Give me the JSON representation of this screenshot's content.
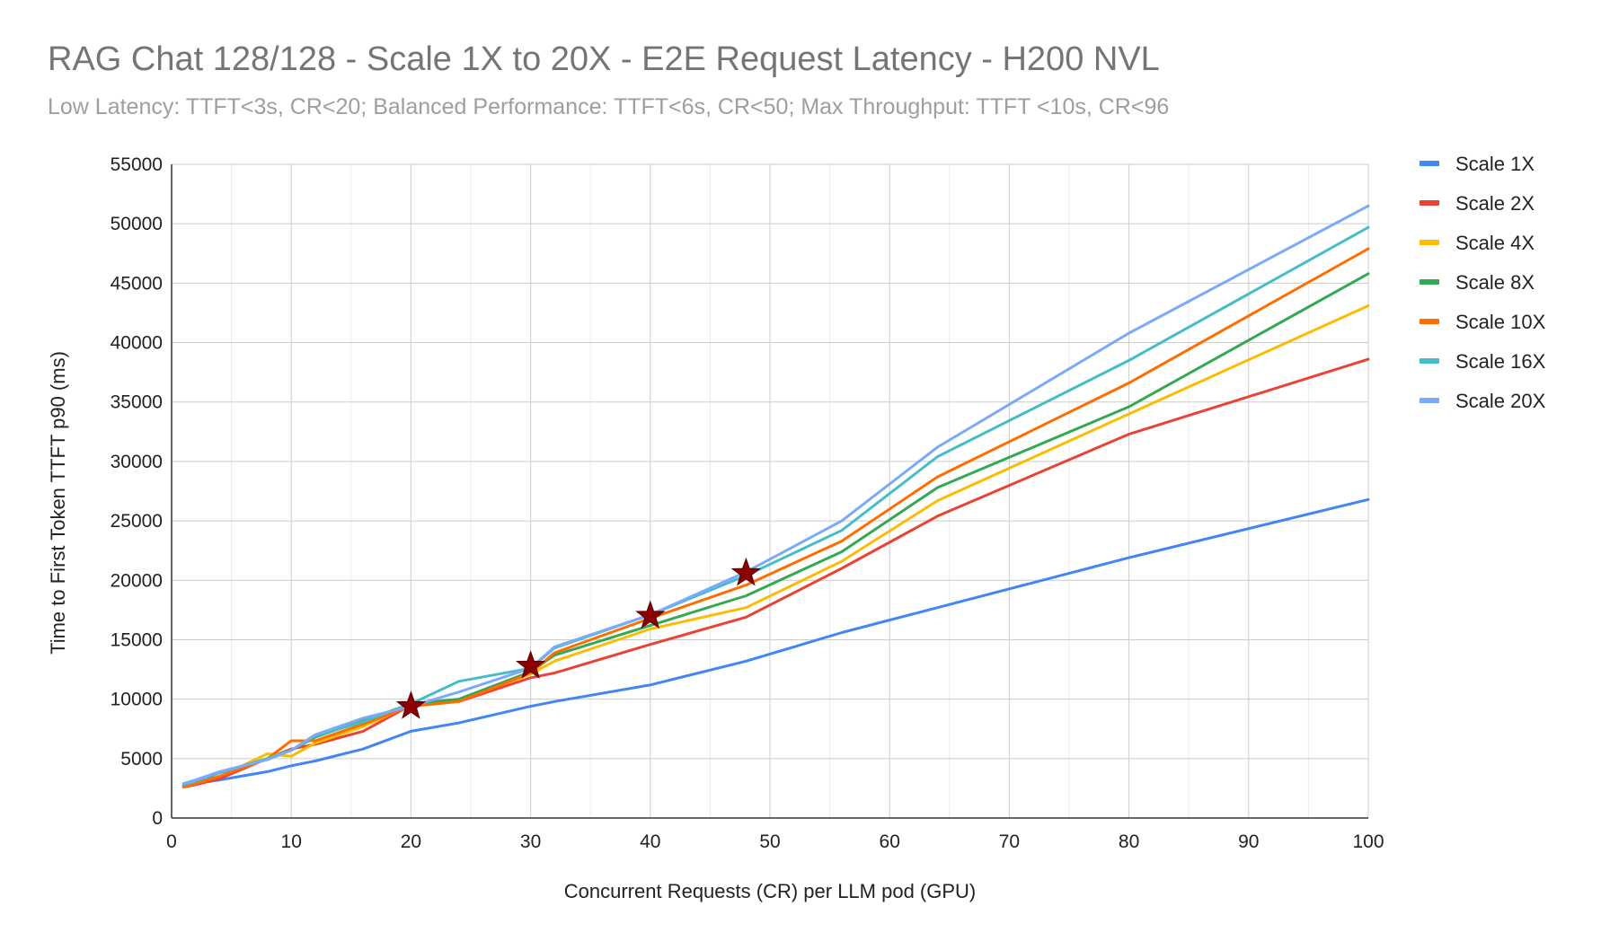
{
  "chart_data": {
    "type": "line",
    "title": "RAG Chat 128/128 - Scale 1X to 20X - E2E Request Latency - H200 NVL",
    "subtitle": "Low Latency: TTFT<3s, CR<20; Balanced Performance: TTFT<6s, CR<50; Max Throughput: TTFT <10s, CR<96",
    "xlabel": "Concurrent Requests (CR) per LLM pod (GPU)",
    "ylabel": "Time to First Token TTFT p90 (ms)",
    "xlim": [
      0,
      100
    ],
    "ylim": [
      0,
      55000
    ],
    "xticks": [
      0,
      10,
      20,
      30,
      40,
      50,
      60,
      70,
      80,
      90,
      100
    ],
    "yticks": [
      0,
      5000,
      10000,
      15000,
      20000,
      25000,
      30000,
      35000,
      40000,
      45000,
      50000,
      55000
    ],
    "grid": true,
    "legend_position": "right",
    "x": [
      1,
      2,
      4,
      8,
      10,
      12,
      16,
      20,
      24,
      30,
      32,
      40,
      48,
      56,
      64,
      80,
      100
    ],
    "series": [
      {
        "name": "Scale 1X",
        "color": "#4285f4",
        "values": [
          2700,
          2900,
          3200,
          3900,
          4400,
          4800,
          5800,
          7300,
          8000,
          9400,
          9800,
          11200,
          13200,
          15600,
          17700,
          21900,
          26800
        ]
      },
      {
        "name": "Scale 2X",
        "color": "#ea4335",
        "values": [
          2600,
          2800,
          3300,
          5000,
          5800,
          6200,
          7300,
          9500,
          9800,
          11800,
          12200,
          14600,
          16900,
          21000,
          25400,
          32300,
          38600
        ]
      },
      {
        "name": "Scale 4X",
        "color": "#fbbc04",
        "values": [
          2600,
          2900,
          3500,
          5400,
          5200,
          6300,
          7700,
          9500,
          9900,
          12100,
          13200,
          15900,
          17700,
          21600,
          26700,
          34000,
          43100
        ]
      },
      {
        "name": "Scale 8X",
        "color": "#34a853",
        "values": [
          2700,
          3000,
          3800,
          5000,
          5700,
          6800,
          8200,
          9600,
          10000,
          12300,
          13700,
          16200,
          18700,
          22400,
          27800,
          34600,
          45800
        ]
      },
      {
        "name": "Scale 10X",
        "color": "#ff6d01",
        "values": [
          2600,
          2900,
          3500,
          5000,
          6500,
          6500,
          7900,
          9400,
          9800,
          12200,
          13900,
          16800,
          19600,
          23300,
          28700,
          36600,
          47900
        ]
      },
      {
        "name": "Scale 16X",
        "color": "#46bdc6",
        "values": [
          2800,
          3100,
          3800,
          5000,
          5700,
          6900,
          8100,
          9600,
          11500,
          12600,
          14300,
          17100,
          20400,
          24200,
          30400,
          38500,
          49700
        ]
      },
      {
        "name": "Scale 20X",
        "color": "#7baaf7",
        "values": [
          2900,
          3200,
          3900,
          4900,
          5700,
          7000,
          8400,
          9400,
          10600,
          12600,
          14400,
          17100,
          20700,
          25000,
          31200,
          40800,
          51500
        ]
      }
    ],
    "markers": {
      "shape": "star",
      "color": "#8b0000",
      "points": [
        {
          "x": 20,
          "y": 9400
        },
        {
          "x": 30,
          "y": 12800
        },
        {
          "x": 40,
          "y": 17000
        },
        {
          "x": 48,
          "y": 20600
        }
      ]
    }
  }
}
